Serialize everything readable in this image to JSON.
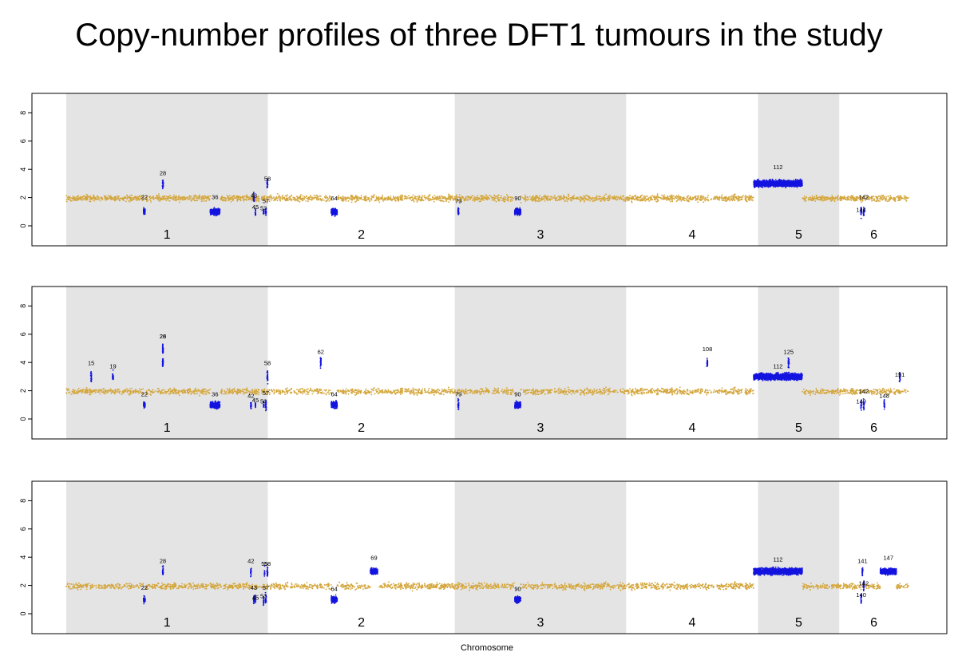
{
  "title": "Copy-number profiles of three DFT1 tumours in the study",
  "colors": {
    "normal": "#D4A63C",
    "aberrant": "#1414E0",
    "shade": "#E4E4E4",
    "frame": "#000000"
  },
  "chart_data": {
    "type": "scatter",
    "xlabel": "Chromosome",
    "ylim": [
      -1,
      9
    ],
    "y_ticks": [
      "0",
      "2",
      "4",
      "6",
      "8"
    ],
    "chromosomes": [
      {
        "label": "1",
        "start": 0,
        "end": 148.1,
        "shaded": true
      },
      {
        "label": "2",
        "start": 148.1,
        "end": 285.4,
        "shaded": false
      },
      {
        "label": "3",
        "start": 285.4,
        "end": 411.3,
        "shaded": true
      },
      {
        "label": "4",
        "start": 411.3,
        "end": 508.3,
        "shaded": false
      },
      {
        "label": "5",
        "start": 508.3,
        "end": 567.9,
        "shaded": true
      },
      {
        "label": "6",
        "start": 567.9,
        "end": 618.8,
        "shaded": false
      }
    ],
    "x_end": 618.8,
    "panels": [
      {
        "segments": [
          {
            "id": "22",
            "x": 57.4,
            "cn": 1,
            "width": 1.2,
            "label_y": 1.9
          },
          {
            "id": "28",
            "x": 71.0,
            "cn": 3,
            "width": 0.6,
            "label_y": 3.6
          },
          {
            "id": "36",
            "x": 109.3,
            "cn": 1,
            "width": 7.1,
            "label_y": 1.9
          },
          {
            "id": "43",
            "x": 137.8,
            "cn": 2,
            "width": 0.5,
            "label_y": 2.0
          },
          {
            "id": "45",
            "x": 139.0,
            "cn": 1,
            "width": 0.3,
            "label_y": 1.2
          },
          {
            "id": "53",
            "x": 145.0,
            "cn": 1,
            "width": 0.3,
            "label_y": 1.1
          },
          {
            "id": "57",
            "x": 146.6,
            "cn": 1,
            "width": 0.6,
            "label_y": 1.6
          },
          {
            "id": "58",
            "x": 147.8,
            "cn": 3,
            "width": 0.6,
            "label_y": 3.2
          },
          {
            "id": "64",
            "x": 196.9,
            "cn": 1,
            "width": 4.4,
            "label_y": 1.8
          },
          {
            "id": "79",
            "x": 288.1,
            "cn": 1,
            "width": 0.6,
            "label_y": 1.6
          },
          {
            "id": "90",
            "x": 331.7,
            "cn": 1,
            "width": 4.4,
            "label_y": 1.8
          },
          {
            "id": "112",
            "x": 522.9,
            "cn": 3,
            "width": 35.7,
            "label_y": 4.0
          },
          {
            "id": "142",
            "x": 585.9,
            "cn": 1,
            "width": 0.6,
            "label_y": 1.9
          },
          {
            "id": "144",
            "x": 584.0,
            "cn": 1,
            "width": 0.5,
            "label_y": 1.0
          }
        ]
      },
      {
        "segments": [
          {
            "id": "15",
            "x": 18.3,
            "cn": 3,
            "width": 0.6,
            "label_y": 3.8
          },
          {
            "id": "19",
            "x": 34.3,
            "cn": 3,
            "width": 0.6,
            "label_y": 3.6
          },
          {
            "id": "22",
            "x": 57.4,
            "cn": 1,
            "width": 1.2,
            "label_y": 1.6
          },
          {
            "id": "26",
            "x": 71.0,
            "cn": 5,
            "width": 0.6,
            "label_y": 5.7
          },
          {
            "id": "28",
            "x": 71.0,
            "cn": 4,
            "width": 0.6,
            "label_y": 5.7
          },
          {
            "id": "36",
            "x": 109.3,
            "cn": 1,
            "width": 7.1,
            "label_y": 1.6
          },
          {
            "id": "42",
            "x": 135.7,
            "cn": 1,
            "width": 0.5,
            "label_y": 1.5
          },
          {
            "id": "45",
            "x": 139.0,
            "cn": 1,
            "width": 0.3,
            "label_y": 1.2
          },
          {
            "id": "53",
            "x": 145.0,
            "cn": 1,
            "width": 0.3,
            "label_y": 1.1
          },
          {
            "id": "57",
            "x": 146.6,
            "cn": 1,
            "width": 0.6,
            "label_y": 1.7
          },
          {
            "id": "58",
            "x": 147.8,
            "cn": 3,
            "width": 0.6,
            "label_y": 3.8
          },
          {
            "id": "62",
            "x": 187.0,
            "cn": 4,
            "width": 0.6,
            "label_y": 4.6
          },
          {
            "id": "64",
            "x": 196.9,
            "cn": 1,
            "width": 4.4,
            "label_y": 1.6
          },
          {
            "id": "79",
            "x": 288.1,
            "cn": 1,
            "width": 0.6,
            "label_y": 1.6
          },
          {
            "id": "90",
            "x": 331.7,
            "cn": 1,
            "width": 4.4,
            "label_y": 1.6
          },
          {
            "id": "108",
            "x": 471.0,
            "cn": 4,
            "width": 0.6,
            "label_y": 4.8
          },
          {
            "id": "112",
            "x": 522.9,
            "cn": 3,
            "width": 35.7,
            "label_y": 3.6
          },
          {
            "id": "125",
            "x": 530.7,
            "cn": 4,
            "width": 0.6,
            "label_y": 4.6
          },
          {
            "id": "140",
            "x": 584.0,
            "cn": 1,
            "width": 0.5,
            "label_y": 1.1
          },
          {
            "id": "142",
            "x": 585.9,
            "cn": 1,
            "width": 0.6,
            "label_y": 1.8
          },
          {
            "id": "148",
            "x": 601.0,
            "cn": 1,
            "width": 0.5,
            "label_y": 1.5
          },
          {
            "id": "151",
            "x": 612.4,
            "cn": 3,
            "width": 0.6,
            "label_y": 3.0
          }
        ]
      },
      {
        "segments": [
          {
            "id": "22",
            "x": 57.4,
            "cn": 1,
            "width": 1.2,
            "label_y": 1.7
          },
          {
            "id": "28",
            "x": 71.0,
            "cn": 3,
            "width": 0.6,
            "label_y": 3.6
          },
          {
            "id": "42",
            "x": 135.7,
            "cn": 3,
            "width": 0.5,
            "label_y": 3.6
          },
          {
            "id": "43",
            "x": 137.8,
            "cn": 1,
            "width": 0.5,
            "label_y": 1.7
          },
          {
            "id": "45",
            "x": 139.0,
            "cn": 1,
            "width": 0.3,
            "label_y": 1.0
          },
          {
            "id": "53",
            "x": 145.0,
            "cn": 1,
            "width": 0.3,
            "label_y": 1.1
          },
          {
            "id": "55",
            "x": 145.7,
            "cn": 3,
            "width": 0.3,
            "label_y": 3.4
          },
          {
            "id": "57",
            "x": 146.6,
            "cn": 1,
            "width": 0.6,
            "label_y": 1.7
          },
          {
            "id": "58",
            "x": 147.8,
            "cn": 3,
            "width": 0.6,
            "label_y": 3.4
          },
          {
            "id": "64",
            "x": 196.9,
            "cn": 1,
            "width": 4.4,
            "label_y": 1.6
          },
          {
            "id": "69",
            "x": 226.1,
            "cn": 3,
            "width": 5.3,
            "label_y": 3.8
          },
          {
            "id": "90",
            "x": 331.7,
            "cn": 1,
            "width": 4.4,
            "label_y": 1.6
          },
          {
            "id": "112",
            "x": 522.9,
            "cn": 3,
            "width": 35.7,
            "label_y": 3.7
          },
          {
            "id": "140",
            "x": 584.0,
            "cn": 1,
            "width": 0.5,
            "label_y": 1.2
          },
          {
            "id": "141",
            "x": 585.0,
            "cn": 3,
            "width": 0.5,
            "label_y": 3.6
          },
          {
            "id": "142",
            "x": 585.9,
            "cn": 2,
            "width": 0.6,
            "label_y": 2.0
          },
          {
            "id": "147",
            "x": 604.0,
            "cn": 3,
            "width": 11.8,
            "label_y": 3.8
          }
        ]
      }
    ]
  }
}
